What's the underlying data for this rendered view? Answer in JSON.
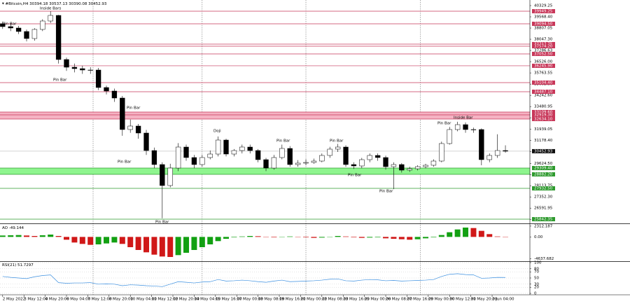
{
  "chart_data": [
    {
      "type": "candlestick",
      "title": "#Bitcoin,H4",
      "ohlc_header": [
        30394.18,
        30537.13,
        30390.08,
        30452.93
      ],
      "last_price": 30452.93,
      "x": [
        0,
        3,
        6,
        9,
        12,
        15,
        18,
        21,
        24,
        27,
        30,
        33,
        36,
        39,
        42,
        45,
        48,
        51,
        54,
        57,
        60,
        63,
        66,
        69,
        72,
        75,
        78,
        81,
        84,
        87,
        90,
        93,
        96,
        99,
        102,
        105,
        108,
        111,
        114,
        117,
        120,
        123,
        126,
        129,
        132,
        135,
        138,
        141,
        144,
        147,
        150,
        153,
        156,
        159,
        162,
        165,
        168,
        171,
        174,
        177,
        180,
        183,
        186,
        189
      ],
      "open": [
        39100,
        38904,
        38809,
        38572,
        38096,
        38714,
        39284,
        39664,
        36672,
        36149,
        36054,
        35959,
        35959,
        34772,
        34534,
        34059,
        31922,
        32159,
        31684,
        30497,
        29547,
        28122,
        29309,
        30734,
        30022,
        29547,
        30022,
        30259,
        31209,
        30259,
        30497,
        30734,
        30497,
        29879,
        29309,
        30022,
        30639,
        29547,
        29642,
        29689,
        29784,
        30164,
        30592,
        30734,
        29547,
        29452,
        29879,
        30164,
        30022,
        29404,
        29547,
        29167,
        29262,
        29404,
        29499,
        29784,
        30972,
        31922,
        32254,
        31922,
        31922,
        29879,
        30164,
        30497
      ],
      "high": [
        39250,
        39150,
        38950,
        38700,
        38800,
        39400,
        39950,
        39700,
        36800,
        36400,
        36250,
        36150,
        36100,
        34900,
        34700,
        34200,
        32600,
        32300,
        31900,
        30700,
        29700,
        29600,
        31000,
        30900,
        30200,
        30200,
        30500,
        31450,
        31300,
        30600,
        30900,
        30900,
        30600,
        30000,
        30200,
        30900,
        30800,
        29850,
        29900,
        29950,
        30300,
        30750,
        30950,
        30850,
        29700,
        30000,
        30300,
        30300,
        30150,
        29700,
        29650,
        29400,
        29500,
        29600,
        29900,
        31100,
        32100,
        32450,
        32400,
        32050,
        32000,
        30300,
        31600,
        30850
      ],
      "low": [
        38750,
        38600,
        38400,
        37900,
        37950,
        38600,
        39150,
        36400,
        35900,
        35800,
        35700,
        35700,
        34600,
        34300,
        33800,
        31500,
        31700,
        31300,
        30200,
        29300,
        25900,
        28000,
        29100,
        29800,
        29300,
        29400,
        29900,
        30100,
        30100,
        30100,
        30300,
        30300,
        29700,
        29100,
        29200,
        29900,
        29400,
        29400,
        29500,
        29600,
        29700,
        30000,
        30400,
        29400,
        29250,
        29300,
        29700,
        29800,
        29200,
        27880,
        29000,
        29050,
        29150,
        29300,
        29400,
        29700,
        30900,
        31800,
        31700,
        31700,
        29500,
        29700,
        30000,
        30350
      ],
      "close": [
        38904,
        38809,
        38572,
        38096,
        38714,
        39284,
        39664,
        36672,
        36149,
        36054,
        35959,
        35959,
        34772,
        34534,
        34059,
        31922,
        32159,
        31684,
        30497,
        29547,
        28122,
        29309,
        30734,
        30022,
        29547,
        30022,
        30259,
        31209,
        30259,
        30497,
        30734,
        30497,
        29879,
        29309,
        30022,
        30639,
        29547,
        29642,
        29689,
        29784,
        30164,
        30592,
        30734,
        29547,
        29452,
        29879,
        30164,
        30022,
        29404,
        29547,
        29167,
        29262,
        29404,
        29499,
        29784,
        30972,
        31922,
        32254,
        31922,
        31922,
        29879,
        30164,
        30497,
        30452.93
      ],
      "up_color": "#ffffff",
      "down_color": "#000000",
      "wick_color": "#000000",
      "xlim": [
        -1,
        198.2
      ],
      "ylim": [
        25604,
        40709
      ],
      "xticks": [
        {
          "value": 0,
          "label": "2 May 2022"
        },
        {
          "value": 8,
          "label": "3 May 12:00"
        },
        {
          "value": 16,
          "label": "4 May 20:00"
        },
        {
          "value": 24,
          "label": "6 May 04:00"
        },
        {
          "value": 32,
          "label": "7 May 12:00"
        },
        {
          "value": 40,
          "label": "8 May 20:00"
        },
        {
          "value": 48,
          "label": "10 May 04:00"
        },
        {
          "value": 56,
          "label": "11 May 12:00"
        },
        {
          "value": 64,
          "label": "12 May 20:00"
        },
        {
          "value": 72,
          "label": "14 May 04:00"
        },
        {
          "value": 80,
          "label": "15 May 16:00"
        },
        {
          "value": 88,
          "label": "17 May 00:00"
        },
        {
          "value": 96,
          "label": "18 May 08:00"
        },
        {
          "value": 104,
          "label": "19 May 16:00"
        },
        {
          "value": 112,
          "label": "21 May 00:00"
        },
        {
          "value": 120,
          "label": "22 May 08:00"
        },
        {
          "value": 128,
          "label": "23 May 16:00"
        },
        {
          "value": 136,
          "label": "25 May 00:00"
        },
        {
          "value": 144,
          "label": "26 May 08:00"
        },
        {
          "value": 152,
          "label": "27 May 16:00"
        },
        {
          "value": 160,
          "label": "29 May 00:00"
        },
        {
          "value": 168,
          "label": "30 May 12:00"
        },
        {
          "value": 176,
          "label": "31 May 20:00"
        },
        {
          "value": 184,
          "label": "2 Jun 04:00"
        }
      ],
      "yticks": [
        {
          "value": 40329.25,
          "label": "40329.25"
        },
        {
          "value": 39568.4,
          "label": "39568.40"
        },
        {
          "value": 38807.05,
          "label": "38807.05"
        },
        {
          "value": 38047.3,
          "label": "38047.30"
        },
        {
          "value": 37286.63,
          "label": "37286.63"
        },
        {
          "value": 36526,
          "label": "36526.00"
        },
        {
          "value": 35763.55,
          "label": "35763.55"
        },
        {
          "value": 35003,
          "label": "35003.00"
        },
        {
          "value": 34242.6,
          "label": "34242.60"
        },
        {
          "value": 33480.95,
          "label": "33480.95"
        },
        {
          "value": 32720.3,
          "label": "32720.30"
        },
        {
          "value": 31939.05,
          "label": "31939.05"
        },
        {
          "value": 31178.4,
          "label": "31178.40"
        },
        {
          "value": 30417.75,
          "label": "30417.75"
        },
        {
          "value": 29624.5,
          "label": "29624.50"
        },
        {
          "value": 28863.85,
          "label": "28863.85"
        },
        {
          "value": 28113.75,
          "label": "28113.75"
        },
        {
          "value": 27352.3,
          "label": "27352.30"
        },
        {
          "value": 26591.95,
          "label": "26591.95"
        },
        {
          "value": 25830.6,
          "label": "25830.60"
        }
      ],
      "separators": [
        34,
        75,
        114,
        157
      ],
      "levels": [
        {
          "value": 39949.25,
          "label": "39949.25",
          "color": "#c8385a"
        },
        {
          "value": 39094.5,
          "label": "39094.50",
          "color": "#c8385a"
        },
        {
          "value": 37717.75,
          "label": "37717.75",
          "color": "#c8385a"
        },
        {
          "value": 37574.2,
          "label": "37574.20",
          "color": "#c8385a"
        },
        {
          "value": 37052.5,
          "label": "37052.50",
          "color": "#c8385a"
        },
        {
          "value": 36245.9,
          "label": "36245.90",
          "color": "#c8385a"
        },
        {
          "value": 35104.4,
          "label": "35104.40",
          "color": "#c8385a"
        },
        {
          "value": 34487.1,
          "label": "34487.10",
          "color": "#c8385a"
        },
        {
          "value": 33109.6,
          "label": "33109.60",
          "color": "#c8385a"
        },
        {
          "value": 32919.3,
          "label": "32919.30",
          "color": "#c8385a"
        },
        {
          "value": 32634.1,
          "label": "32634.10",
          "color": "#c8385a"
        },
        {
          "value": 29309.4,
          "label": "29309.40",
          "color": "#2e9a2e"
        },
        {
          "value": 28882.2,
          "label": "28882.20",
          "color": "#2e9a2e"
        },
        {
          "value": 27932.5,
          "label": "27932.50",
          "color": "#2e9a2e"
        },
        {
          "value": 25842.35,
          "label": "25842.35",
          "color": "#2e9a2e"
        }
      ],
      "zones": [
        {
          "low": 32634.1,
          "high": 33109.6,
          "color": "#f5b3c3"
        },
        {
          "low": 28882.2,
          "high": 29309.4,
          "color": "#8ef58e"
        }
      ],
      "annotations": [
        "Inside Bars",
        "Pin Bar",
        "Pin Bar",
        "Pin Bar",
        "Pin Bar",
        "Doji",
        "Pin Bar",
        "Pin Bar",
        "Pin Bar",
        "Pin Bar",
        "Pin Bar",
        "Pin Bar",
        "Inside Bar"
      ]
    },
    {
      "type": "bar",
      "name": "AO",
      "last_value": -49.144,
      "up_color": "#12a012",
      "down_color": "#d01818",
      "values": [
        300,
        350,
        400,
        300,
        200,
        350,
        500,
        200,
        -600,
        -1200,
        -1500,
        -1700,
        -1600,
        -1400,
        -1200,
        -1500,
        -2200,
        -2800,
        -3300,
        -3800,
        -4200,
        -4300,
        -3900,
        -3400,
        -2800,
        -2200,
        -1600,
        -900,
        -400,
        -100,
        100,
        200,
        150,
        -50,
        -100,
        0,
        100,
        50,
        -100,
        -200,
        -150,
        50,
        200,
        100,
        -100,
        -200,
        -150,
        -100,
        -300,
        -400,
        -500,
        -600,
        -500,
        -300,
        -100,
        400,
        1000,
        1600,
        2000,
        1900,
        1300,
        600,
        100,
        -49.144
      ],
      "ylim": [
        -4900,
        2600
      ],
      "yticks": [
        {
          "value": 2312.187,
          "label": "2312.187"
        },
        {
          "value": 0,
          "label": "0.00"
        },
        {
          "value": -4637.682,
          "label": "-4637.682"
        }
      ]
    },
    {
      "type": "line",
      "name": "RSI(21)",
      "last_value": 51.7297,
      "color": "#3b8fe0",
      "values": [
        55,
        52,
        50,
        48,
        54,
        58,
        60,
        35,
        33,
        34,
        34,
        35,
        30,
        31,
        30,
        25,
        28,
        27,
        25,
        24,
        22,
        30,
        38,
        36,
        34,
        37,
        38,
        45,
        40,
        41,
        43,
        41,
        38,
        36,
        40,
        43,
        38,
        39,
        40,
        41,
        43,
        46,
        47,
        41,
        40,
        43,
        45,
        44,
        41,
        42,
        40,
        41,
        42,
        43,
        45,
        55,
        62,
        64,
        61,
        60,
        49,
        50,
        52,
        51.7297
      ],
      "ylim": [
        0,
        100
      ],
      "yticks": [
        100,
        80,
        70,
        50,
        30,
        20,
        0
      ]
    }
  ]
}
